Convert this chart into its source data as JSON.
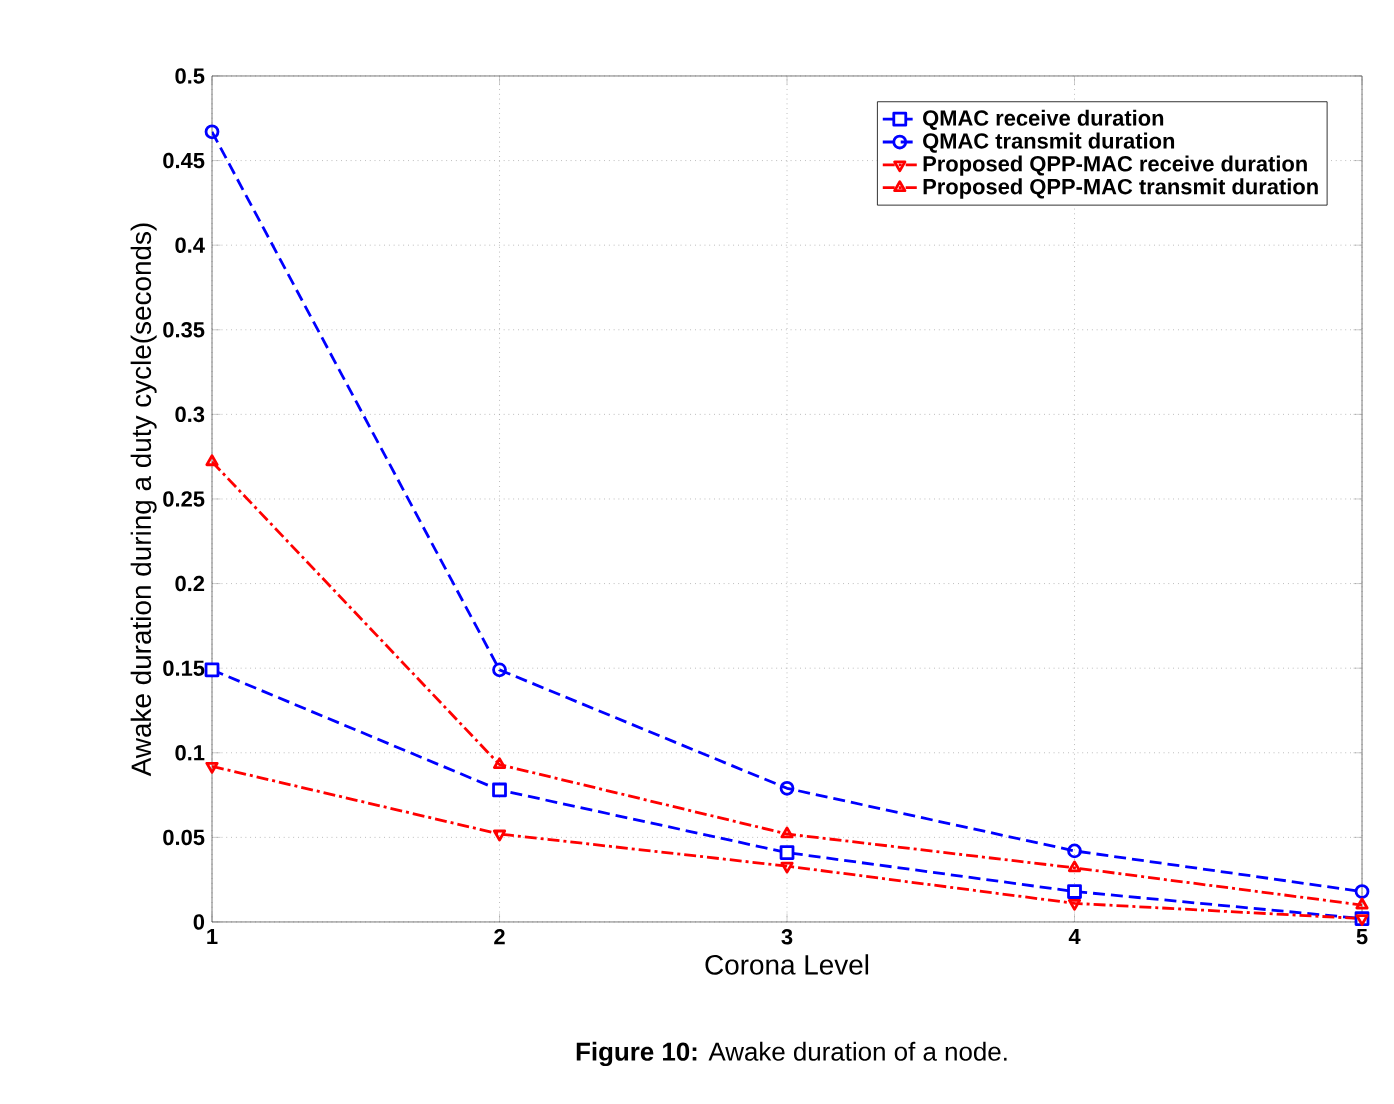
{
  "chart_data": {
    "type": "line",
    "xlabel": "Corona Level",
    "ylabel": "Awake duration during a duty cycle(seconds)",
    "x": [
      1,
      2,
      3,
      4,
      5
    ],
    "series": [
      {
        "name": "QMAC receive duration",
        "color": "#0000ff",
        "marker": "square",
        "line_style": "dashed",
        "values": [
          0.149,
          0.078,
          0.041,
          0.018,
          0.002
        ]
      },
      {
        "name": "QMAC transmit duration",
        "color": "#0000ff",
        "marker": "circle",
        "line_style": "dashed",
        "values": [
          0.467,
          0.149,
          0.079,
          0.042,
          0.018
        ]
      },
      {
        "name": "Proposed QPP-MAC receive duration",
        "color": "#ff0000",
        "marker": "triangle-down",
        "line_style": "dashdot",
        "values": [
          0.092,
          0.052,
          0.033,
          0.011,
          0.002
        ]
      },
      {
        "name": "Proposed QPP-MAC transmit duration",
        "color": "#ff0000",
        "marker": "triangle",
        "line_style": "dashdot",
        "values": [
          0.272,
          0.093,
          0.052,
          0.032,
          0.01
        ]
      }
    ],
    "xlim": [
      1,
      5
    ],
    "ylim": [
      0,
      0.5
    ],
    "xticks": [
      1,
      2,
      3,
      4,
      5
    ],
    "yticks": [
      0,
      0.05,
      0.1,
      0.15,
      0.2,
      0.25,
      0.3,
      0.35,
      0.4,
      0.45,
      0.5
    ],
    "grid": true,
    "legend": "top right",
    "annotations": [
      "**Figure 10:** Awake duration of a node."
    ]
  }
}
